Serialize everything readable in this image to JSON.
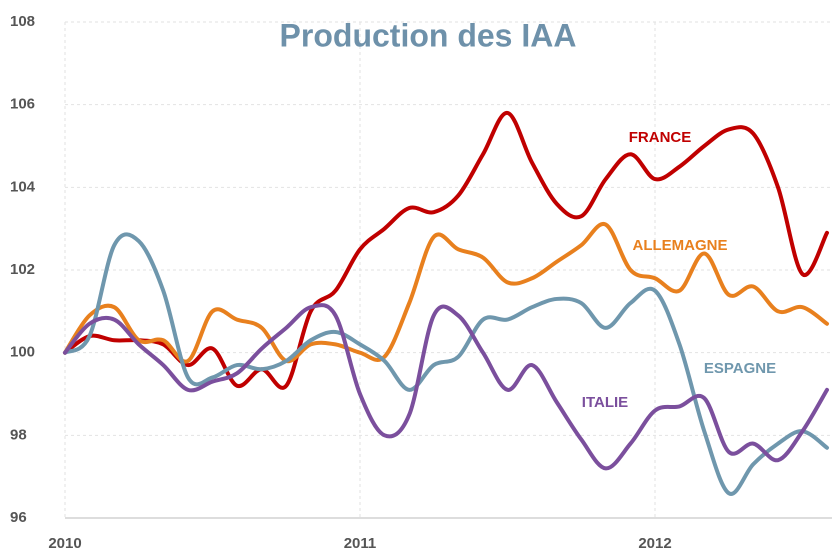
{
  "chart_data": {
    "type": "line",
    "title": "Production des IAA",
    "x": [
      2010,
      2010.083,
      2010.167,
      2010.25,
      2010.333,
      2010.417,
      2010.5,
      2010.583,
      2010.667,
      2010.75,
      2010.833,
      2010.917,
      2011,
      2011.083,
      2011.167,
      2011.25,
      2011.333,
      2011.417,
      2011.5,
      2011.583,
      2011.667,
      2011.75,
      2011.833,
      2011.917,
      2012,
      2012.083,
      2012.167,
      2012.25,
      2012.333,
      2012.417,
      2012.5,
      2012.583
    ],
    "series": [
      {
        "name": "FRANCE",
        "color": "#c00000",
        "values": [
          100,
          100.4,
          100.3,
          100.3,
          100.2,
          99.7,
          100.1,
          99.2,
          99.6,
          99.2,
          101,
          101.5,
          102.5,
          103,
          103.5,
          103.4,
          103.8,
          104.8,
          105.8,
          104.6,
          103.6,
          103.3,
          104.2,
          104.8,
          104.2,
          104.5,
          105,
          105.4,
          105.3,
          104,
          101.9,
          102.9
        ]
      },
      {
        "name": "ALLEMAGNE",
        "color": "#e8801e",
        "values": [
          100,
          100.9,
          101.1,
          100.3,
          100.3,
          99.8,
          101,
          100.8,
          100.6,
          99.8,
          100.2,
          100.2,
          100,
          99.9,
          101.2,
          102.8,
          102.5,
          102.3,
          101.7,
          101.8,
          102.2,
          102.6,
          103.1,
          102,
          101.8,
          101.5,
          102.4,
          101.4,
          101.6,
          101,
          101.1,
          100.7
        ]
      },
      {
        "name": "ESPAGNE",
        "color": "#6f97ad",
        "values": [
          100,
          100.4,
          102.6,
          102.7,
          101.5,
          99.4,
          99.4,
          99.7,
          99.6,
          99.8,
          100.3,
          100.5,
          100.2,
          99.8,
          99.1,
          99.7,
          99.9,
          100.8,
          100.8,
          101.1,
          101.3,
          101.2,
          100.6,
          101.2,
          101.5,
          100.2,
          98.1,
          96.6,
          97.3,
          97.8,
          98.1,
          97.7
        ]
      },
      {
        "name": "ITALIE",
        "color": "#7b4f9d",
        "values": [
          100,
          100.7,
          100.8,
          100.2,
          99.7,
          99.1,
          99.3,
          99.5,
          100.1,
          100.6,
          101.1,
          100.9,
          99,
          98,
          98.5,
          100.9,
          100.9,
          100,
          99.1,
          99.7,
          98.8,
          97.9,
          97.2,
          97.8,
          98.6,
          98.7,
          98.9,
          97.6,
          97.8,
          97.4,
          98.1,
          99.1
        ]
      }
    ],
    "xlim": [
      2010,
      2012.6
    ],
    "xticks": [
      2010,
      2011,
      2012
    ],
    "ylim": [
      96,
      108
    ],
    "yticks": [
      96,
      98,
      100,
      102,
      104,
      106,
      108
    ],
    "grid": true
  }
}
